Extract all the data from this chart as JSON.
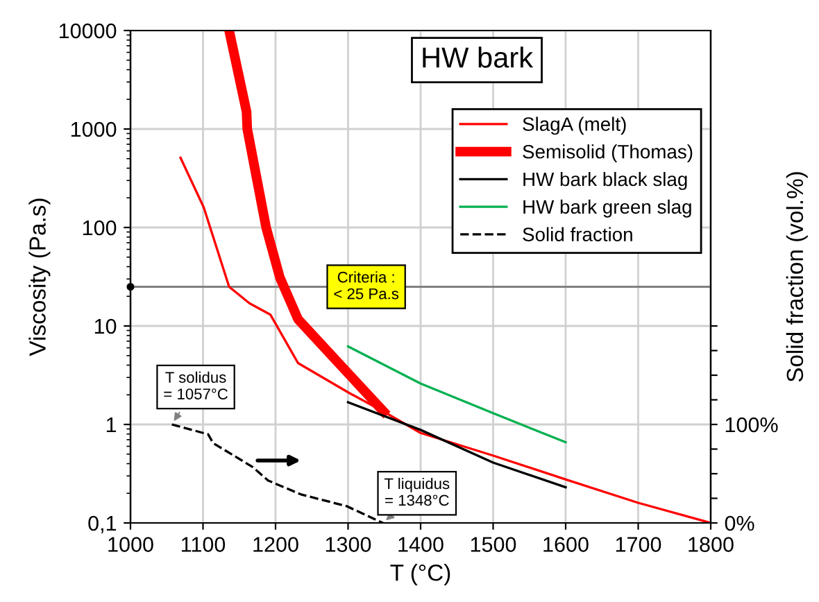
{
  "chart_data": {
    "type": "line",
    "title": "HW bark",
    "xlabel": "T (°C)",
    "ylabel": "Viscosity (Pa.s)",
    "y2label": "Solid fraction (vol.%)",
    "log": "y",
    "grid": true,
    "legend": "top right",
    "marker": "none",
    "xlim": [
      1000,
      1800
    ],
    "xticks": [
      1000,
      1100,
      1200,
      1300,
      1400,
      1500,
      1600,
      1700,
      1800
    ],
    "ylim": [
      0.1,
      10000
    ],
    "yticks": [
      {
        "value": 0.1,
        "label": "0,1"
      },
      1,
      10,
      100,
      1000,
      10000
    ],
    "y2lim": [
      0,
      500
    ],
    "y2ticks": [
      {
        "value": 0,
        "label": "0%"
      },
      {
        "value": 25,
        "label": null
      },
      {
        "value": 50,
        "label": null
      },
      {
        "value": 75,
        "label": null
      },
      {
        "value": 100,
        "label": "100%"
      },
      {
        "value": 125,
        "label": null
      },
      {
        "value": 150,
        "label": null
      },
      {
        "value": 175,
        "label": null
      },
      {
        "value": 200,
        "label": null
      }
    ],
    "series": [
      {
        "name": "SlagA (melt)",
        "color": "#ff0000",
        "line_style": "solid",
        "x": [
          1069,
          1101,
          1136,
          1164,
          1193,
          1231,
          1301,
          1349,
          1400,
          1501,
          1601,
          1700,
          1800
        ],
        "values": [
          510,
          160,
          25,
          17,
          13,
          4.2,
          2.1,
          1.35,
          0.82,
          0.48,
          0.275,
          0.16,
          0.1
        ]
      },
      {
        "name": "Semisolid (Thomas)",
        "color": "#ff0000",
        "line_style": "solid",
        "x": [
          1136,
          1160,
          1161,
          1187,
          1206,
          1231,
          1349
        ],
        "values": [
          10000,
          1500,
          1000,
          100,
          31,
          11.7,
          1.35
        ]
      },
      {
        "name": "HW bark black slag",
        "color": "#000000",
        "line_style": "solid",
        "x": [
          1300,
          1400,
          1500,
          1600
        ],
        "values": [
          1.68,
          0.88,
          0.41,
          0.23
        ]
      },
      {
        "name": "HW bark green slag",
        "color": "#00b050",
        "line_style": "solid",
        "x": [
          1300,
          1400,
          1500,
          1600
        ],
        "values": [
          6.2,
          2.6,
          1.3,
          0.66
        ]
      },
      {
        "name": "Solid fraction",
        "color": "#000000",
        "line_style": "dashed",
        "axis": "y2",
        "x": [
          1057,
          1107,
          1114,
          1168,
          1190,
          1235,
          1298,
          1348
        ],
        "values": [
          100,
          90,
          81,
          57,
          43,
          29,
          17,
          0
        ]
      }
    ],
    "ref_lines": [
      {
        "axis": "y",
        "value": 25,
        "label": "Criteria :\n< 25 Pa.s",
        "color": "#808080"
      }
    ],
    "annotations": [
      {
        "text": "T solidus\n= 1057°C",
        "x": 1057,
        "y": 1
      },
      {
        "text": "T liquidus\n= 1348°C",
        "x": 1348,
        "y": 0.1
      }
    ]
  }
}
